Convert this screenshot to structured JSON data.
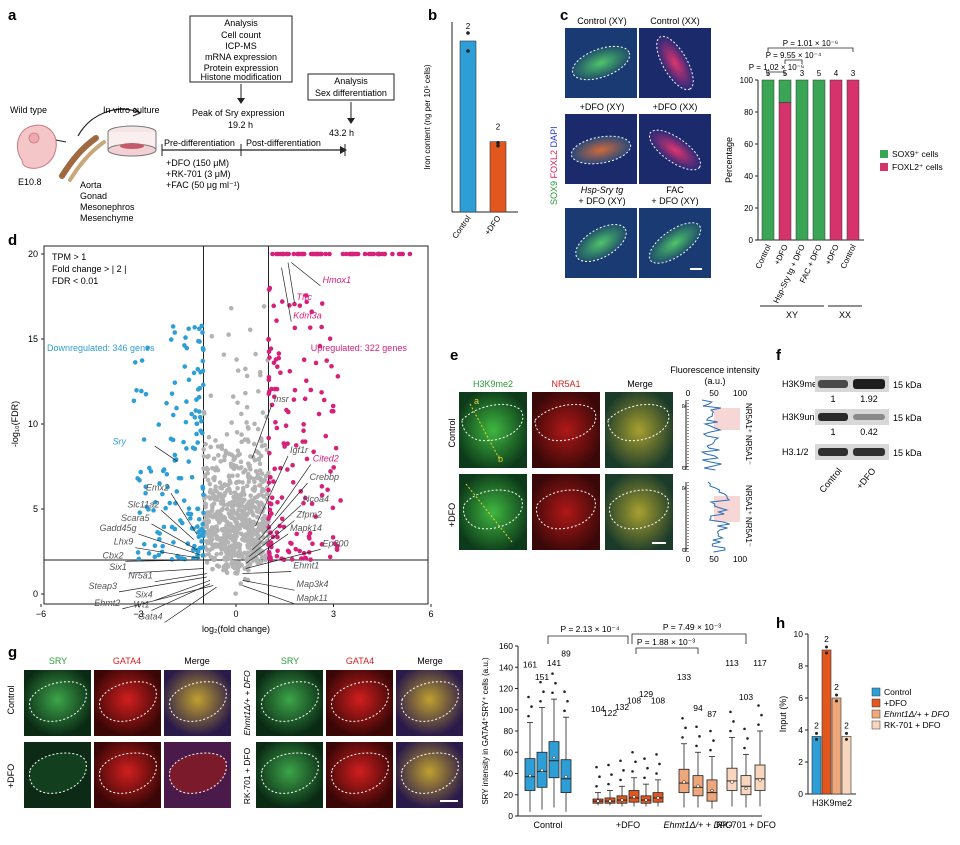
{
  "panel_a": {
    "label": "a",
    "wild_type": "Wild type",
    "embryo_stage": "E10.8",
    "in_vitro": "In vitro culture",
    "tissues": [
      "Aorta",
      "Gonad",
      "Mesonephros",
      "Mesenchyme"
    ],
    "analysis1_title": "Analysis",
    "analysis1_items": [
      "Cell count",
      "ICP-MS",
      "mRNA expression",
      "Protein expression",
      "Histone modification"
    ],
    "analysis2_title": "Analysis",
    "analysis2_items": [
      "Sex differentiation"
    ],
    "peak_line1": "Peak of Sry expression",
    "peak_time": "19.2 h",
    "end_time": "43.2 h",
    "pre": "Pre-differentiation",
    "post": "Post-differentiation",
    "treatments": [
      "+DFO (150 μM)",
      "+RK-701 (3 μM)",
      "+FAC (50 μg ml⁻¹)"
    ]
  },
  "panel_b": {
    "label": "b",
    "ylabel": "Iron content (ng per 10⁵ cells)",
    "categories": [
      "Control",
      "+DFO"
    ],
    "n_labels": [
      "2",
      "2"
    ],
    "colors": [
      "#2e9ed6",
      "#e2571e"
    ]
  },
  "panel_c": {
    "label": "c",
    "image_titles": [
      "Control (XY)",
      "Control (XX)",
      "+DFO (XY)",
      "+DFO (XX)",
      "Hsp-Sry tg",
      "+ DFO (XY)",
      "FAC",
      "+ DFO (XY)"
    ],
    "stain_sox9": "SOX9",
    "stain_foxl2": "FOXL2",
    "stain_dapi": "DAPI",
    "ylabel": "Percentage",
    "categories": [
      "Control",
      "+DFO",
      "Hsp-Sry tg + DFO",
      "FAC + DFO",
      "+DFO",
      "Control"
    ],
    "n_labels": [
      "5",
      "5",
      "3",
      "5",
      "4",
      "3"
    ],
    "groups": [
      "XY",
      "XX"
    ],
    "legend": [
      "SOX9⁺ cells",
      "FOXL2⁺ cells"
    ],
    "colors": {
      "sox9": "#3aa655",
      "foxl2": "#d6336c"
    },
    "pvalues": [
      "P = 1.01 × 10⁻⁶",
      "P = 9.55 × 10⁻⁴",
      "P = 1.02 × 10⁻⁶"
    ]
  },
  "panel_d": {
    "label": "d",
    "criteria": [
      "TPM > 1",
      "Fold change > | 2 |",
      "FDR < 0.01"
    ],
    "down_label": "Downregulated: 346 genes",
    "up_label": "Upregulated: 322 genes",
    "xlabel": "log₂(fold change)",
    "ylabel": "-log₁₀(FDR)",
    "xticks": [
      "−6",
      "−3",
      "0",
      "3",
      "6"
    ],
    "yticks": [
      "0",
      "5",
      "10",
      "15",
      "20"
    ],
    "genes_up": [
      "Hmox1",
      "Tfrc",
      "Kdm3a",
      "Cited2"
    ],
    "genes_grey_right": [
      "Insr",
      "Igf1r",
      "Crebbp",
      "Ncoa4",
      "Zfpm2",
      "Mapk14",
      "Ep300",
      "Ehmt1",
      "Map3k4",
      "Mapk11"
    ],
    "gene_sry": "Sry",
    "genes_left": [
      "Emx2",
      "Slc11a2",
      "Scara5",
      "Gadd45g",
      "Lhx9",
      "Cbx2",
      "Six1",
      "Nr5a1",
      "Steap3",
      "Six4",
      "Wt1",
      "Ehmt2",
      "Gata4"
    ],
    "colors": {
      "up": "#d6207a",
      "down": "#2e9ed6",
      "ns": "#b3b3b3"
    }
  },
  "panel_e": {
    "label": "e",
    "col_titles": [
      "H3K9me2",
      "NR5A1",
      "Merge"
    ],
    "rows": [
      "Control",
      "+DFO"
    ],
    "fi_title": "Fluorescence intensity",
    "fi_unit": "(a.u.)",
    "fi_ticks": [
      "0",
      "50",
      "100"
    ],
    "lab_a": "a",
    "lab_b": "b",
    "nr5a1_pos": "NR5A1⁺",
    "nr5a1_neg": "NR5A1⁻"
  },
  "panel_f": {
    "label": "f",
    "rows": [
      "H3K9me2",
      "H3K9unme",
      "H3.1/2"
    ],
    "kda": [
      "15 kDa",
      "15 kDa",
      "15 kDa"
    ],
    "values_me2": [
      "1",
      "1.92"
    ],
    "values_unme": [
      "1",
      "0.42"
    ],
    "lanes": [
      "Control",
      "+DFO"
    ]
  },
  "panel_g": {
    "label": "g",
    "col_titles": [
      "SRY",
      "GATA4",
      "Merge"
    ],
    "rows_left": [
      "Control",
      "+DFO"
    ],
    "rows_right": [
      "Ehmt1Δ/+ + DFO",
      "RK-701 + DFO"
    ],
    "ylabel": "SRY intensity in GATA4⁺SRY⁺ cells (a.u.)",
    "yticks": [
      "0",
      "20",
      "40",
      "60",
      "80",
      "100",
      "120",
      "140",
      "160"
    ],
    "groups": [
      "Control",
      "+DFO",
      "Ehmt1Δ/+ + DFO",
      "RK-701 + DFO"
    ],
    "n_labels": [
      "161",
      "151",
      "141",
      "89",
      "104",
      "122",
      "132",
      "108",
      "129",
      "108",
      "133",
      "94",
      "87",
      "113",
      "103",
      "117"
    ],
    "pvalues": [
      "P = 2.13 × 10⁻⁴",
      "P = 7.49 × 10⁻³",
      "P = 1.88 × 10⁻³"
    ],
    "colors": [
      "#2e9ed6",
      "#e2571e",
      "#eea77a",
      "#f7d6bd"
    ]
  },
  "panel_h": {
    "label": "h",
    "ylabel": "Input (%)",
    "yticks": [
      "0",
      "2",
      "4",
      "6",
      "8",
      "10"
    ],
    "xlabel": "H3K9me2",
    "n_labels": [
      "2",
      "2",
      "2",
      "2"
    ],
    "legend": [
      "Control",
      "+DFO",
      "Ehmt1Δ/+ + DFO",
      "RK-701 + DFO"
    ],
    "colors": [
      "#2e9ed6",
      "#e2571e",
      "#eea77a",
      "#f7d6bd"
    ]
  },
  "chart_data": [
    {
      "type": "bar",
      "panel": "b",
      "categories": [
        "Control",
        "+DFO"
      ],
      "values": [
        9.0,
        3.7
      ],
      "ylabel": "Iron content (ng per 10⁵ cells)",
      "ylim": [
        0,
        10
      ]
    },
    {
      "type": "bar",
      "panel": "c",
      "stacked": true,
      "categories": [
        "Control",
        "+DFO",
        "Hsp-Sry tg + DFO",
        "FAC + DFO",
        "+DFO",
        "Control"
      ],
      "series": [
        {
          "name": "SOX9⁺ cells",
          "values": [
            100,
            14,
            100,
            100,
            0,
            0
          ]
        },
        {
          "name": "FOXL2⁺ cells",
          "values": [
            0,
            86,
            0,
            0,
            100,
            100
          ]
        }
      ],
      "ylabel": "Percentage",
      "ylim": [
        0,
        100
      ]
    },
    {
      "type": "box",
      "panel": "g",
      "ylabel": "SRY intensity in GATA4⁺SRY⁺ cells (a.u.)",
      "ylim": [
        0,
        160
      ],
      "boxes": [
        {
          "group": "Control",
          "n": 161,
          "q1": 24,
          "median": 37,
          "q3": 54,
          "wmin": 4,
          "wmax": 88,
          "mean": 38
        },
        {
          "group": "Control",
          "n": 151,
          "q1": 27,
          "median": 42,
          "q3": 60,
          "wmin": 6,
          "wmax": 102,
          "mean": 43
        },
        {
          "group": "Control",
          "n": 141,
          "q1": 36,
          "median": 52,
          "q3": 70,
          "wmin": 8,
          "wmax": 110,
          "mean": 55
        },
        {
          "group": "Control",
          "n": 89,
          "q1": 22,
          "median": 35,
          "q3": 53,
          "wmin": 4,
          "wmax": 93,
          "mean": 37
        },
        {
          "group": "+DFO",
          "n": 104,
          "q1": 12,
          "median": 14,
          "q3": 16,
          "wmin": 10,
          "wmax": 22,
          "mean": 14
        },
        {
          "group": "+DFO",
          "n": 122,
          "q1": 12,
          "median": 14,
          "q3": 17,
          "wmin": 10,
          "wmax": 24,
          "mean": 14
        },
        {
          "group": "+DFO",
          "n": 132,
          "q1": 12,
          "median": 15,
          "q3": 19,
          "wmin": 9,
          "wmax": 28,
          "mean": 15
        },
        {
          "group": "+DFO",
          "n": 108,
          "q1": 13,
          "median": 17,
          "q3": 24,
          "wmin": 9,
          "wmax": 36,
          "mean": 18
        },
        {
          "group": "+DFO",
          "n": 129,
          "q1": 12,
          "median": 15,
          "q3": 19,
          "wmin": 9,
          "wmax": 30,
          "mean": 15
        },
        {
          "group": "+DFO",
          "n": 108,
          "q1": 13,
          "median": 17,
          "q3": 22,
          "wmin": 9,
          "wmax": 34,
          "mean": 17
        },
        {
          "group": "Ehmt1Δ/+ + DFO",
          "n": 133,
          "q1": 22,
          "median": 31,
          "q3": 44,
          "wmin": 8,
          "wmax": 68,
          "mean": 32
        },
        {
          "group": "Ehmt1Δ/+ + DFO",
          "n": 94,
          "q1": 19,
          "median": 27,
          "q3": 38,
          "wmin": 8,
          "wmax": 60,
          "mean": 28
        },
        {
          "group": "Ehmt1Δ/+ + DFO",
          "n": 87,
          "q1": 14,
          "median": 22,
          "q3": 34,
          "wmin": 7,
          "wmax": 56,
          "mean": 24
        },
        {
          "group": "RK-701 + DFO",
          "n": 113,
          "q1": 24,
          "median": 33,
          "q3": 45,
          "wmin": 9,
          "wmax": 74,
          "mean": 32
        },
        {
          "group": "RK-701 + DFO",
          "n": 103,
          "q1": 20,
          "median": 28,
          "q3": 38,
          "wmin": 8,
          "wmax": 58,
          "mean": 26
        },
        {
          "group": "RK-701 + DFO",
          "n": 117,
          "q1": 24,
          "median": 35,
          "q3": 48,
          "wmin": 9,
          "wmax": 80,
          "mean": 34
        }
      ]
    },
    {
      "type": "bar",
      "panel": "h",
      "categories": [
        "H3K9me2"
      ],
      "series": [
        {
          "name": "Control",
          "values": [
            3.6
          ]
        },
        {
          "name": "+DFO",
          "values": [
            9.0
          ]
        },
        {
          "name": "Ehmt1Δ/+ + DFO",
          "values": [
            6.0
          ]
        },
        {
          "name": "RK-701 + DFO",
          "values": [
            3.6
          ]
        }
      ],
      "ylabel": "Input (%)",
      "ylim": [
        0,
        10
      ]
    }
  ]
}
